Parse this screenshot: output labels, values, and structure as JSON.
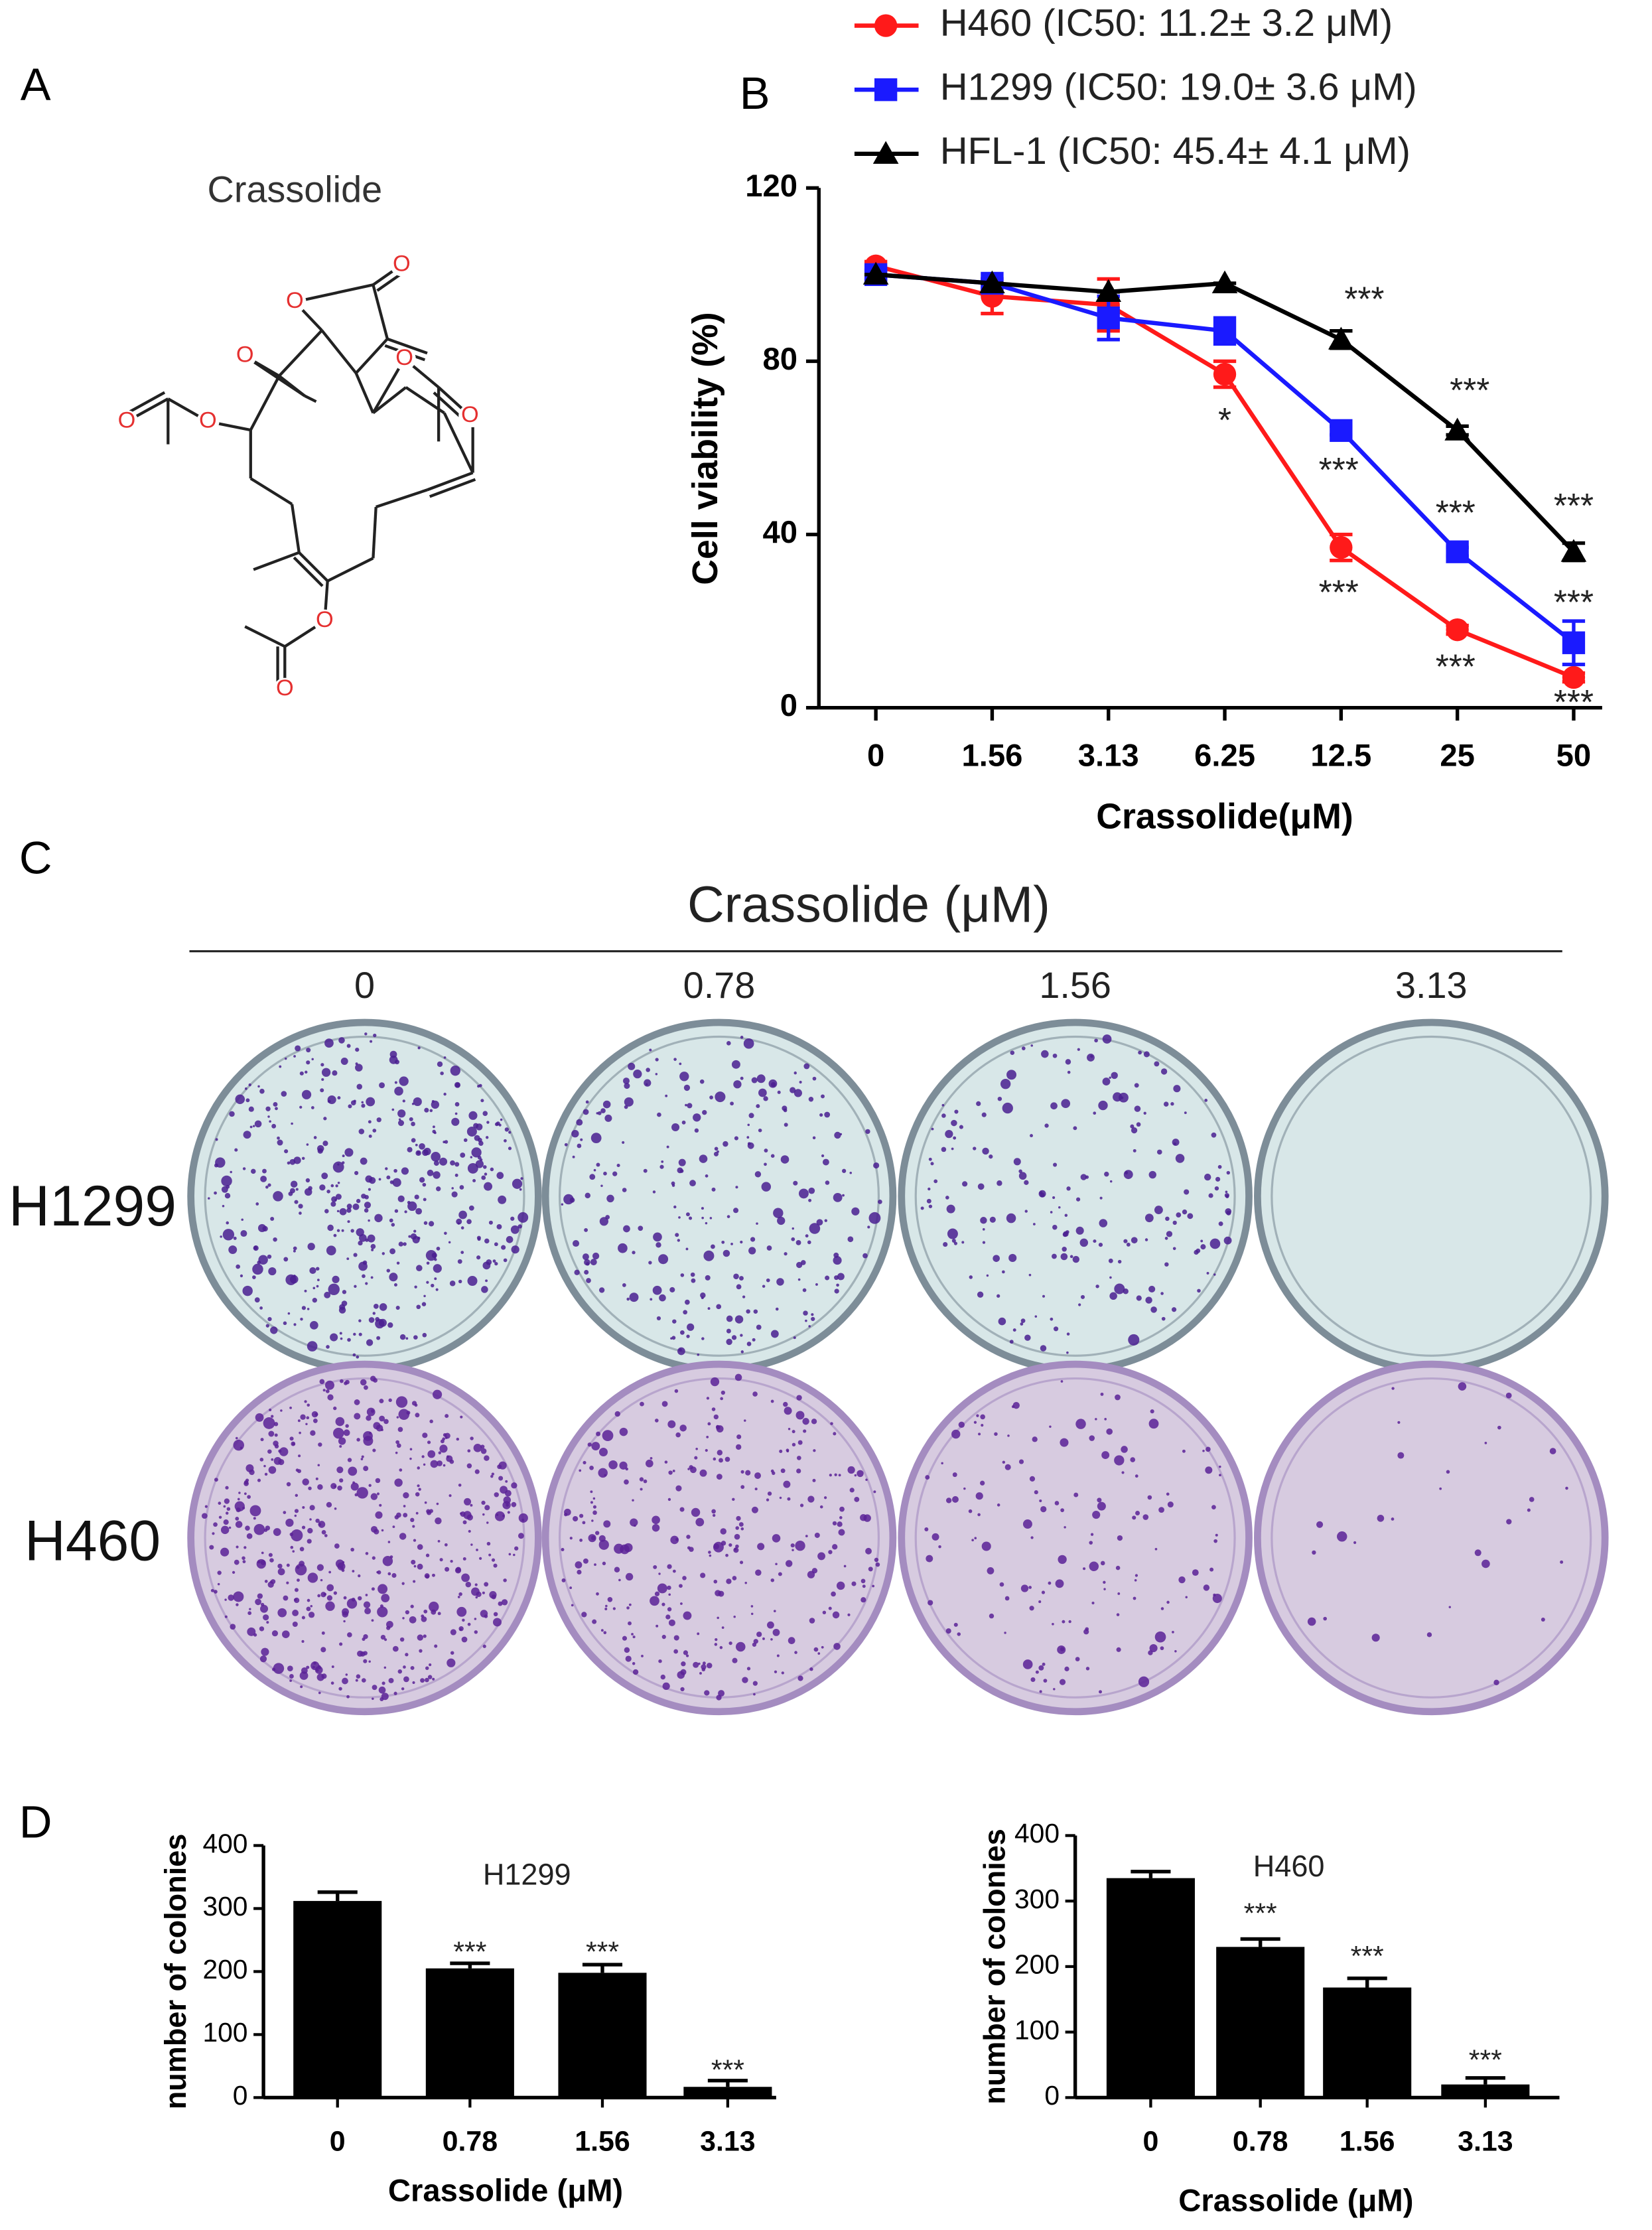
{
  "panel_labels": [
    "A",
    "B",
    "C",
    "D"
  ],
  "structure": {
    "title": "Crassolide",
    "atom_labels": [
      "O",
      "O",
      "O",
      "O",
      "O",
      "O",
      "O",
      "O",
      "O"
    ]
  },
  "colony_assay": {
    "title": "Crassolide (μM)",
    "concentrations": [
      "0",
      "0.78",
      "1.56",
      "3.13"
    ],
    "cell_lines": [
      "H1299",
      "H460"
    ]
  },
  "chart_data": [
    {
      "type": "line",
      "x_label": "Crassolide(μM)",
      "y_label": "Cell viability (%)",
      "categories": [
        "0",
        "1.56",
        "3.13",
        "6.25",
        "12.5",
        "25",
        "50"
      ],
      "ylim": [
        0,
        120
      ],
      "yticks": [
        0,
        40,
        80,
        120
      ],
      "series": [
        {
          "name": "H460 (IC50: 11.2± 3.2 μM)",
          "color": "#ff1a1a",
          "marker": "circle",
          "values": [
            102,
            95,
            93,
            77,
            37,
            18,
            7
          ],
          "errors": [
            1,
            4,
            6,
            3,
            3,
            1,
            1
          ]
        },
        {
          "name": "H1299 (IC50: 19.0± 3.6 μM)",
          "color": "#1a1aff",
          "marker": "square",
          "values": [
            100,
            98,
            90,
            87,
            64,
            36,
            15
          ],
          "errors": [
            1,
            1,
            5,
            3,
            1,
            1,
            5
          ]
        },
        {
          "name": "HFL-1 (IC50: 45.4± 4.1 μM)",
          "color": "#000000",
          "marker": "triangle",
          "values": [
            100,
            98,
            96,
            98,
            85,
            64,
            36
          ],
          "errors": [
            0,
            0,
            0,
            0,
            2,
            1,
            2
          ]
        }
      ],
      "annotations": [
        "*",
        "***",
        "***",
        "***",
        "***",
        "***",
        "***",
        "***",
        "***",
        "***"
      ]
    },
    {
      "type": "bar",
      "title": "H1299",
      "x_label": "Crassolide (μM)",
      "y_label": "number of colonies",
      "categories": [
        "0",
        "0.78",
        "1.56",
        "3.13"
      ],
      "values": [
        312,
        205,
        198,
        17
      ],
      "errors": [
        14,
        8,
        13,
        10
      ],
      "color": "#000000",
      "ylim": [
        0,
        400
      ],
      "yticks": [
        0,
        100,
        200,
        300,
        400
      ],
      "annotations": [
        "***",
        "***",
        "***"
      ]
    },
    {
      "type": "bar",
      "title": "H460",
      "x_label": "Crassolide (μM)",
      "y_label": "number of colonies",
      "categories": [
        "0",
        "0.78",
        "1.56",
        "3.13"
      ],
      "values": [
        335,
        230,
        168,
        20
      ],
      "errors": [
        10,
        12,
        14,
        10
      ],
      "color": "#000000",
      "ylim": [
        0,
        400
      ],
      "yticks": [
        0,
        100,
        200,
        300,
        400
      ],
      "annotations": [
        "***",
        "***",
        "***"
      ]
    }
  ]
}
